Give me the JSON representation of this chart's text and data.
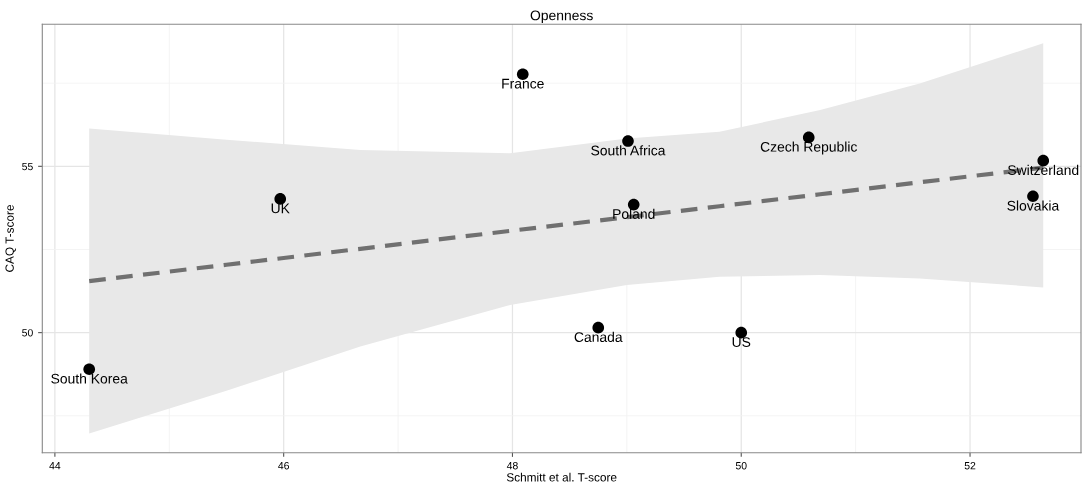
{
  "chart_data": {
    "type": "scatter",
    "title": "Openness",
    "xlabel": "Schmitt et al. T-score",
    "ylabel": "CAQ T-score",
    "xlim": [
      43.89,
      52.97
    ],
    "xticks": [
      44,
      46,
      48,
      50,
      52
    ],
    "ylim": [
      46.39,
      59.27
    ],
    "yticks": [
      50,
      55
    ],
    "grid": true,
    "series": [
      {
        "marker": "circle",
        "color": "#000000",
        "x": [
          44.3,
          45.97,
          48.09,
          49.01,
          49.06,
          48.75,
          50.0,
          50.59,
          52.64,
          52.55
        ],
        "values": [
          48.9,
          54.02,
          57.77,
          55.76,
          53.85,
          50.15,
          50.0,
          55.87,
          55.17,
          54.1
        ]
      },
      {
        "type": "line",
        "color": "#707070",
        "line_style": "dashed",
        "marker": "none",
        "x": [
          44.3,
          45.5,
          46.67,
          47.98,
          49.0,
          49.81,
          50.69,
          51.56,
          52.64
        ],
        "values": [
          51.55,
          52.04,
          52.52,
          53.06,
          53.47,
          53.8,
          54.16,
          54.52,
          54.96
        ],
        "upper": [
          56.14,
          55.8,
          55.49,
          55.39,
          55.84,
          56.04,
          56.69,
          57.49,
          58.7
        ],
        "lower": [
          46.97,
          48.25,
          49.58,
          50.83,
          51.43,
          51.68,
          51.73,
          51.63,
          51.36
        ]
      }
    ],
    "annotations": [
      {
        "text": "South Korea",
        "x": 44.3,
        "y": 48.9
      },
      {
        "text": "UK",
        "x": 45.97,
        "y": 54.02
      },
      {
        "text": "France",
        "x": 48.09,
        "y": 57.77
      },
      {
        "text": "South Africa",
        "x": 49.01,
        "y": 55.76
      },
      {
        "text": "Poland",
        "x": 49.06,
        "y": 53.85
      },
      {
        "text": "Canada",
        "x": 48.75,
        "y": 50.15
      },
      {
        "text": "US",
        "x": 50.0,
        "y": 50.0
      },
      {
        "text": "Czech Republic",
        "x": 50.59,
        "y": 55.87
      },
      {
        "text": "Switzerland",
        "x": 52.64,
        "y": 55.17
      },
      {
        "text": "Slovakia",
        "x": 52.55,
        "y": 54.1
      }
    ]
  }
}
